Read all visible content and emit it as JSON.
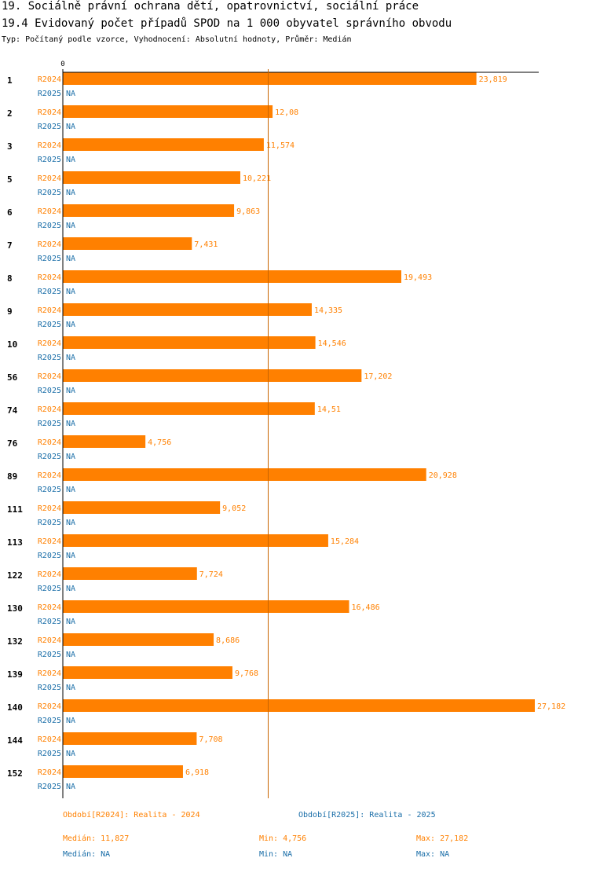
{
  "header": {
    "title": "19. Sociálně právní ochrana dětí, opatrovnictví, sociální práce",
    "subtitle": "19.4 Evidovaný počet případů SPOD na 1 000 obyvatel správního obvodu",
    "type_line": "Typ: Počítaný podle vzorce, Vyhodnocení: Absolutní hodnoty, Průměr: Medián"
  },
  "colors": {
    "r2024": "#ff8000",
    "r2025": "#1a6ea8",
    "axis": "#000000",
    "median_line": "#c86400"
  },
  "chart_data": {
    "type": "bar",
    "orientation": "horizontal",
    "axis_zero_label": "0",
    "xlim": [
      0,
      27.182
    ],
    "median_r2024": 11.827,
    "categories": [
      "1",
      "2",
      "3",
      "5",
      "6",
      "7",
      "8",
      "9",
      "10",
      "56",
      "74",
      "76",
      "89",
      "111",
      "113",
      "122",
      "130",
      "132",
      "139",
      "140",
      "144",
      "152"
    ],
    "series": [
      {
        "name": "R2024",
        "values": [
          23.819,
          12.08,
          11.574,
          10.221,
          9.863,
          7.431,
          19.493,
          14.335,
          14.546,
          17.202,
          14.51,
          4.756,
          20.928,
          9.052,
          15.284,
          7.724,
          16.486,
          8.686,
          9.768,
          27.182,
          7.708,
          6.918
        ],
        "labels": [
          "23,819",
          "12,08",
          "11,574",
          "10,221",
          "9,863",
          "7,431",
          "19,493",
          "14,335",
          "14,546",
          "17,202",
          "14,51",
          "4,756",
          "20,928",
          "9,052",
          "15,284",
          "7,724",
          "16,486",
          "8,686",
          "9,768",
          "27,182",
          "7,708",
          "6,918"
        ]
      },
      {
        "name": "R2025",
        "values": [
          null,
          null,
          null,
          null,
          null,
          null,
          null,
          null,
          null,
          null,
          null,
          null,
          null,
          null,
          null,
          null,
          null,
          null,
          null,
          null,
          null,
          null
        ],
        "labels": [
          "NA",
          "NA",
          "NA",
          "NA",
          "NA",
          "NA",
          "NA",
          "NA",
          "NA",
          "NA",
          "NA",
          "NA",
          "NA",
          "NA",
          "NA",
          "NA",
          "NA",
          "NA",
          "NA",
          "NA",
          "NA",
          "NA"
        ]
      }
    ]
  },
  "footer": {
    "period_2024": "Období[R2024]: Realita - 2024",
    "period_2025": "Období[R2025]: Realita - 2025",
    "median_2024": "Medián: 11,827",
    "min_2024": "Min: 4,756",
    "max_2024": "Max: 27,182",
    "median_2025": "Medián: NA",
    "min_2025": "Min: NA",
    "max_2025": "Max: NA"
  }
}
